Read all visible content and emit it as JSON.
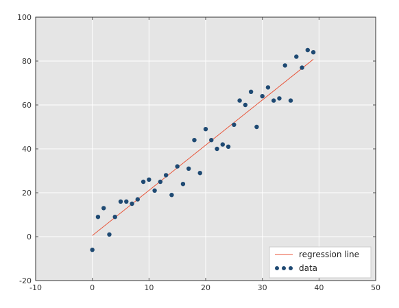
{
  "chart_data": {
    "type": "scatter",
    "title": "",
    "xlabel": "",
    "ylabel": "",
    "xlim": [
      -10,
      50
    ],
    "ylim": [
      -20,
      100
    ],
    "xticks": [
      -10,
      0,
      10,
      20,
      30,
      40,
      50
    ],
    "yticks": [
      -20,
      0,
      20,
      40,
      60,
      80,
      100
    ],
    "grid": true,
    "legend_placement": "lower-right",
    "series": [
      {
        "name": "data",
        "kind": "scatter",
        "color": "#1f4a73",
        "points": [
          [
            0,
            -6
          ],
          [
            1,
            9
          ],
          [
            2,
            13
          ],
          [
            3,
            1
          ],
          [
            4,
            9
          ],
          [
            5,
            16
          ],
          [
            6,
            16
          ],
          [
            7,
            15
          ],
          [
            8,
            17
          ],
          [
            9,
            25
          ],
          [
            10,
            26
          ],
          [
            11,
            21
          ],
          [
            12,
            25
          ],
          [
            13,
            28
          ],
          [
            14,
            19
          ],
          [
            15,
            32
          ],
          [
            16,
            24
          ],
          [
            17,
            31
          ],
          [
            18,
            44
          ],
          [
            19,
            29
          ],
          [
            20,
            49
          ],
          [
            21,
            44
          ],
          [
            22,
            40
          ],
          [
            23,
            42
          ],
          [
            24,
            41
          ],
          [
            25,
            51
          ],
          [
            26,
            62
          ],
          [
            27,
            60
          ],
          [
            28,
            66
          ],
          [
            29,
            50
          ],
          [
            30,
            64
          ],
          [
            31,
            68
          ],
          [
            32,
            62
          ],
          [
            33,
            63
          ],
          [
            34,
            78
          ],
          [
            35,
            62
          ],
          [
            36,
            82
          ],
          [
            37,
            77
          ],
          [
            38,
            85
          ],
          [
            39,
            84
          ]
        ]
      },
      {
        "name": "regression line",
        "kind": "line",
        "color": "#e8553a",
        "points": [
          [
            0,
            0.5
          ],
          [
            39,
            80.8
          ]
        ]
      }
    ]
  },
  "colors": {
    "plot_background": "#e5e5e5",
    "grid": "#ffffff",
    "axis_text": "#333333"
  }
}
